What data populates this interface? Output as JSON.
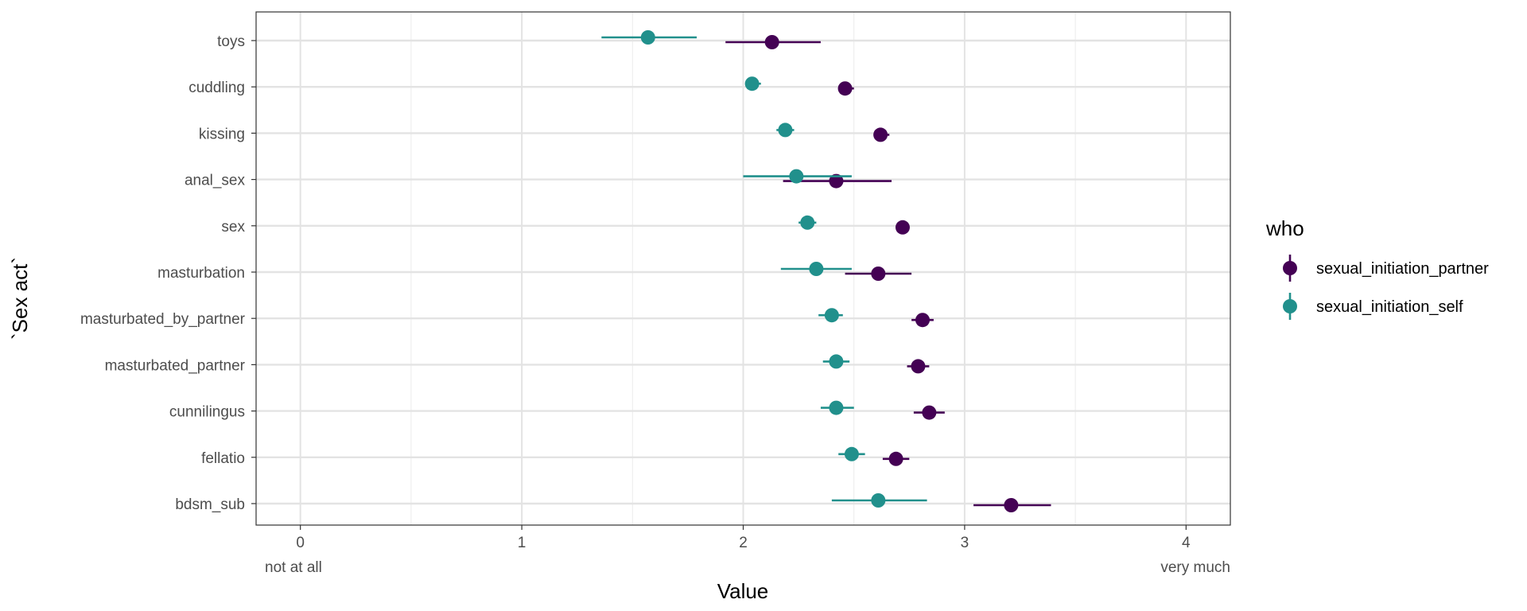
{
  "chart_data": {
    "type": "scatter",
    "subtype": "pointrange",
    "ylabel": "`Sex act`",
    "xlabel": "Value",
    "xlim": [
      -0.2,
      4.2
    ],
    "x_ticks": [
      0,
      1,
      2,
      3,
      4
    ],
    "x_tick_labels": [
      "0",
      "1",
      "2",
      "3",
      "4"
    ],
    "x_minor_ticks": [
      0.5,
      1.5,
      2.5,
      3.5
    ],
    "x_annotations": {
      "left": "not at all",
      "right": "very much"
    },
    "grid": true,
    "legend": {
      "title": "who",
      "position": "right"
    },
    "categories": [
      "toys",
      "cuddling",
      "kissing",
      "anal_sex",
      "sex",
      "masturbation",
      "masturbated_by_partner",
      "masturbated_partner",
      "cunnilingus",
      "fellatio",
      "bdsm_sub"
    ],
    "series": [
      {
        "name": "sexual_initiation_partner",
        "color": "#440154",
        "values": [
          2.13,
          2.46,
          2.62,
          2.42,
          2.72,
          2.61,
          2.81,
          2.79,
          2.84,
          2.69,
          3.21
        ],
        "low": [
          1.92,
          2.43,
          2.59,
          2.18,
          2.69,
          2.46,
          2.76,
          2.74,
          2.77,
          2.63,
          3.04
        ],
        "high": [
          2.35,
          2.5,
          2.66,
          2.67,
          2.75,
          2.76,
          2.86,
          2.84,
          2.91,
          2.75,
          3.39
        ]
      },
      {
        "name": "sexual_initiation_self",
        "color": "#21908C",
        "values": [
          1.57,
          2.04,
          2.19,
          2.24,
          2.29,
          2.33,
          2.4,
          2.42,
          2.42,
          2.49,
          2.61
        ],
        "low": [
          1.36,
          2.01,
          2.15,
          2.0,
          2.25,
          2.17,
          2.34,
          2.36,
          2.35,
          2.43,
          2.4
        ],
        "high": [
          1.79,
          2.08,
          2.23,
          2.49,
          2.33,
          2.49,
          2.45,
          2.48,
          2.5,
          2.55,
          2.83
        ]
      }
    ]
  }
}
